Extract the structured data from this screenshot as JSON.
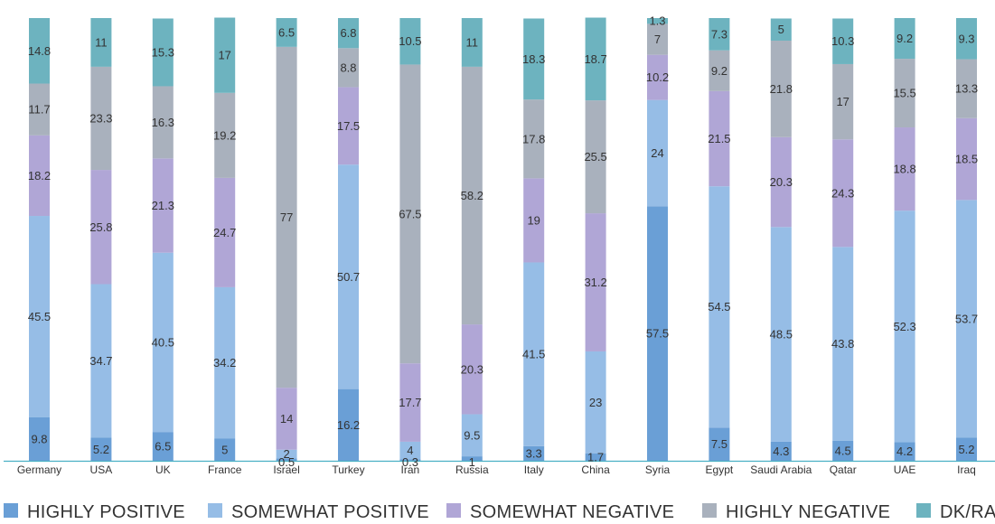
{
  "chart_data": {
    "type": "bar",
    "stacked": true,
    "normalized_to": 100,
    "categories": [
      "Germany",
      "USA",
      "UK",
      "France",
      "Israel",
      "Turkey",
      "Iran",
      "Russia",
      "Italy",
      "China",
      "Syria",
      "Egypt",
      "Saudi Arabia",
      "Qatar",
      "UAE",
      "Iraq"
    ],
    "series": [
      {
        "name": "HIGHLY POSITIVE",
        "color": "#6a9fd6",
        "values": [
          9.8,
          5.2,
          6.5,
          5,
          0.5,
          16.2,
          0.3,
          1,
          3.3,
          1.7,
          57.5,
          7.5,
          4.3,
          4.5,
          4.2,
          5.2
        ]
      },
      {
        "name": "SOMEWHAT POSITIVE",
        "color": "#96bde6",
        "values": [
          45.5,
          34.7,
          40.5,
          34.2,
          2,
          50.7,
          4,
          9.5,
          41.5,
          23,
          24,
          54.5,
          48.5,
          43.8,
          52.3,
          53.7
        ]
      },
      {
        "name": "SOMEWHAT NEGATIVE",
        "color": "#b0a6d6",
        "values": [
          18.2,
          25.8,
          21.3,
          24.7,
          14,
          17.5,
          17.7,
          20.3,
          19,
          31.2,
          10.2,
          21.5,
          20.3,
          24.3,
          18.8,
          18.5
        ]
      },
      {
        "name": "HIGHLY NEGATIVE",
        "color": "#a9b1bd",
        "values": [
          11.7,
          23.3,
          16.3,
          19.2,
          77,
          8.8,
          67.5,
          58.2,
          17.8,
          25.5,
          7,
          9.2,
          21.8,
          17,
          15.5,
          13.3
        ]
      },
      {
        "name": "DK/RA",
        "color": "#6db3bf",
        "values": [
          14.8,
          11,
          15.3,
          17,
          6.5,
          6.8,
          10.5,
          11,
          18.3,
          18.7,
          1.3,
          7.3,
          5,
          10.3,
          9.2,
          9.3
        ]
      }
    ],
    "ylim": [
      0,
      100
    ],
    "grid": false,
    "legend_position": "bottom",
    "title": "",
    "xlabel": "",
    "ylabel": ""
  }
}
